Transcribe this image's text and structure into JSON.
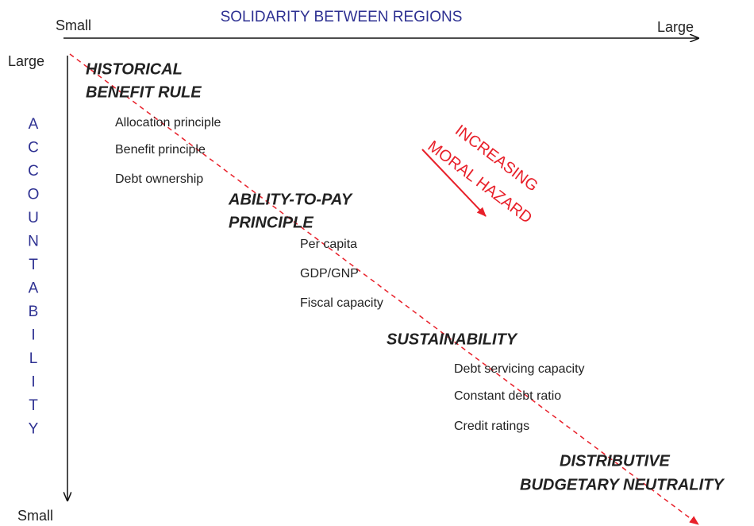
{
  "x_axis": {
    "start": "Small",
    "title": "SOLIDARITY BETWEEN REGIONS",
    "end": "Large"
  },
  "y_axis": {
    "start": "Large",
    "end": "Small",
    "title_letters": [
      "A",
      "C",
      "C",
      "O",
      "U",
      "N",
      "T",
      "A",
      "B",
      "I",
      "L",
      "I",
      "T",
      "Y"
    ]
  },
  "annotation": [
    "INCREASING",
    "MORAL HAZARD"
  ],
  "groups": [
    {
      "heading": [
        "HISTORICAL",
        "BENEFIT RULE"
      ],
      "items": [
        "Allocation principle",
        "Benefit principle",
        "Debt ownership"
      ]
    },
    {
      "heading": [
        "ABILITY-TO-PAY",
        "PRINCIPLE"
      ],
      "items": [
        "Per capita",
        "GDP/GNP",
        "Fiscal capacity"
      ]
    },
    {
      "heading": [
        "SUSTAINABILITY"
      ],
      "items": [
        "Debt servicing capacity",
        "Constant debt ratio",
        "Credit ratings"
      ]
    },
    {
      "heading": [
        "DISTRIBUTIVE",
        "BUDGETARY NEUTRALITY"
      ],
      "items": []
    }
  ]
}
